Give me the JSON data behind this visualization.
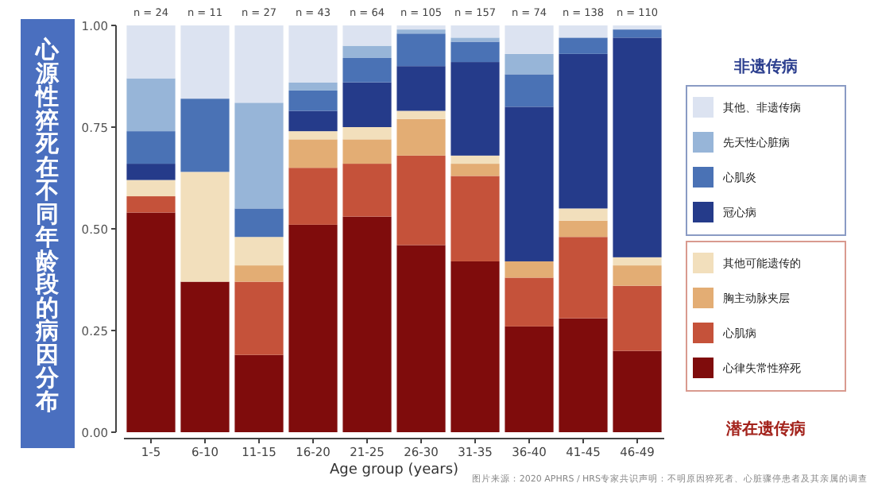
{
  "chart_data": {
    "type": "bar",
    "stacked": true,
    "title": "心源性猝死在不同年龄段的病因分布",
    "xlabel": "Age group (years)",
    "categories": [
      "1-5",
      "6-10",
      "11-15",
      "16-20",
      "21-25",
      "26-30",
      "31-35",
      "36-40",
      "41-45",
      "46-49"
    ],
    "ylim": [
      0,
      1
    ],
    "yticks": [
      {
        "value": 0,
        "label": "0.00"
      },
      {
        "value": 0.25,
        "label": "0.25"
      },
      {
        "value": 0.5,
        "label": "0.50"
      },
      {
        "value": 0.75,
        "label": "0.75"
      },
      {
        "value": 1,
        "label": "1.00"
      }
    ],
    "legend": "right",
    "series": [
      {
        "name": "心律失常性猝死",
        "color": "#7f0c0c",
        "values": [
          0.54,
          0.37,
          0.19,
          0.51,
          0.53,
          0.46,
          0.42,
          0.26,
          0.28,
          0.2
        ]
      },
      {
        "name": "心肌病",
        "color": "#c5523a",
        "values": [
          0.04,
          0,
          0.18,
          0.14,
          0.13,
          0.22,
          0.21,
          0.12,
          0.2,
          0.16
        ]
      },
      {
        "name": "胸主动脉夹层",
        "color": "#e3ad74",
        "values": [
          0,
          0,
          0.04,
          0.07,
          0.06,
          0.09,
          0.03,
          0.04,
          0.04,
          0.05
        ]
      },
      {
        "name": "其他可能遗传的",
        "color": "#f2dfbc",
        "values": [
          0.04,
          0.27,
          0.07,
          0.02,
          0.03,
          0.02,
          0.02,
          0,
          0.03,
          0.02
        ]
      },
      {
        "name": "冠心病",
        "color": "#253b8a",
        "values": [
          0.04,
          0,
          0,
          0.05,
          0.11,
          0.11,
          0.23,
          0.38,
          0.38,
          0.54
        ]
      },
      {
        "name": "心肌炎",
        "color": "#4a72b5",
        "values": [
          0.08,
          0.18,
          0.07,
          0.05,
          0.06,
          0.08,
          0.05,
          0.08,
          0.04,
          0.02
        ]
      },
      {
        "name": "先天性心脏病",
        "color": "#97b5d8",
        "values": [
          0.13,
          0,
          0.26,
          0.02,
          0.03,
          0.01,
          0.01,
          0.05,
          0,
          0
        ]
      },
      {
        "name": "其他、非遗传病",
        "color": "#dce3f1",
        "values": [
          0.13,
          0.18,
          0.19,
          0.14,
          0.05,
          0.01,
          0.03,
          0.07,
          0.03,
          0.01
        ]
      }
    ],
    "annotations": [
      "n = 24",
      "n = 11",
      "n = 27",
      "n = 43",
      "n = 64",
      "n = 105",
      "n = 157",
      "n = 74",
      "n = 138",
      "n = 110",
      "非遗传病",
      "潜在遗传病",
      "图片来源：2020 APHRS / HRS专家共识声明：不明原因猝死者、心脏骤停患者及其亲属的调查"
    ]
  }
}
